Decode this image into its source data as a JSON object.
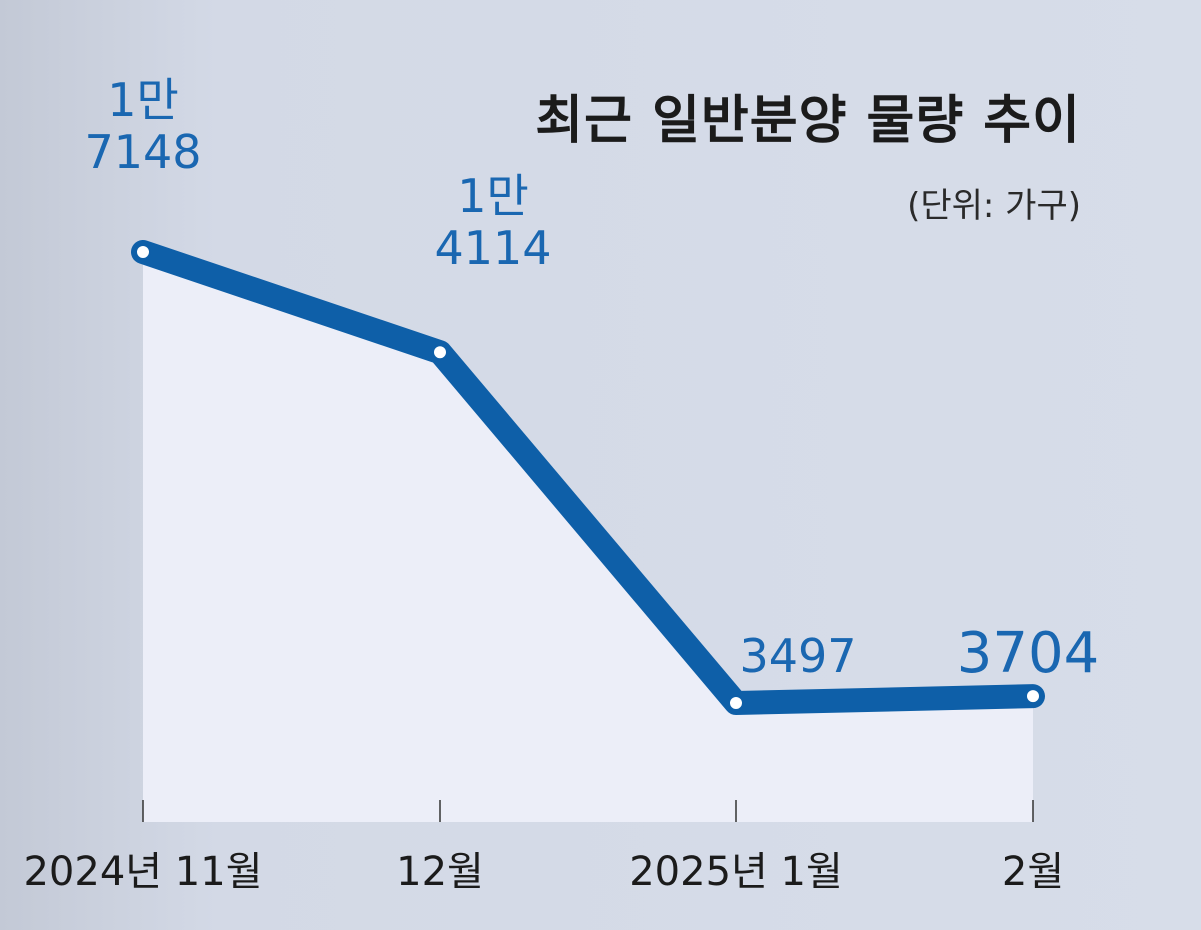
{
  "chart_data": {
    "type": "line",
    "title": "최근 일반분양 물량 추이",
    "unit": "(단위: 가구)",
    "categories": [
      "2024년 11월",
      "12월",
      "2025년 1월",
      "2월"
    ],
    "values": [
      17148,
      14114,
      3497,
      3704
    ],
    "data_labels": [
      [
        "1만",
        "7148"
      ],
      [
        "1만",
        "4114"
      ],
      [
        "3497"
      ],
      [
        "3704"
      ]
    ],
    "ylim": [
      0,
      20000
    ],
    "grid": false,
    "colors": {
      "line": "#0e5fa8",
      "label": "#1a67b1",
      "area": "#eceef8",
      "background": "#d6dce9",
      "text": "#1b1b1b"
    }
  }
}
